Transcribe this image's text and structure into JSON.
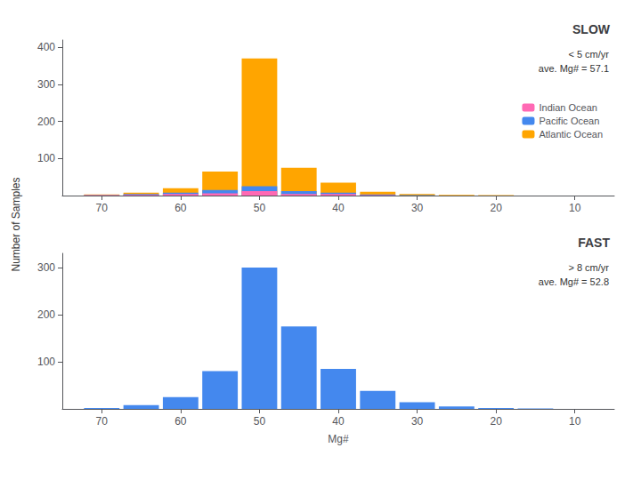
{
  "chart_data": [
    {
      "type": "bar",
      "title": "SLOW",
      "annotations": [
        "< 5 cm/yr",
        "ave. Mg# = 57.1"
      ],
      "ylabel": "Number of Samples",
      "x": [
        70,
        65,
        60,
        55,
        50,
        45,
        40,
        35,
        30,
        25,
        20,
        15,
        10
      ],
      "series": [
        {
          "name": "Atlantic Ocean",
          "color": "#FFA500",
          "values": [
            3,
            8,
            20,
            65,
            370,
            75,
            35,
            10,
            4,
            2,
            1,
            0,
            0
          ]
        },
        {
          "name": "Pacific Ocean",
          "color": "#4488EE",
          "values": [
            1,
            4,
            8,
            15,
            25,
            12,
            8,
            3,
            1,
            0,
            0,
            0,
            0
          ]
        },
        {
          "name": "Indian Ocean",
          "color": "#FF69B4",
          "values": [
            1,
            2,
            4,
            6,
            12,
            4,
            4,
            1,
            0,
            0,
            0,
            0,
            0
          ]
        }
      ],
      "stacked": true,
      "legend": "right",
      "xlim": [
        75,
        5
      ],
      "xticks": [
        10,
        20,
        30,
        40,
        50,
        60,
        70
      ],
      "ylim": [
        0,
        420
      ],
      "yticks": [
        100,
        200,
        300,
        400
      ],
      "grid": false
    },
    {
      "type": "bar",
      "title": "FAST",
      "annotations": [
        "> 8 cm/yr",
        "ave. Mg# = 52.8"
      ],
      "xlabel": "Mg#",
      "x": [
        70,
        65,
        60,
        55,
        50,
        45,
        40,
        35,
        30,
        25,
        20,
        15,
        10
      ],
      "values": [
        2,
        8,
        25,
        80,
        300,
        175,
        85,
        38,
        14,
        5,
        2,
        1,
        0
      ],
      "color": "#4488EE",
      "xlim": [
        75,
        5
      ],
      "xticks": [
        10,
        20,
        30,
        40,
        50,
        60,
        70
      ],
      "ylim": [
        0,
        330
      ],
      "yticks": [
        100,
        200,
        300
      ],
      "grid": false
    }
  ]
}
